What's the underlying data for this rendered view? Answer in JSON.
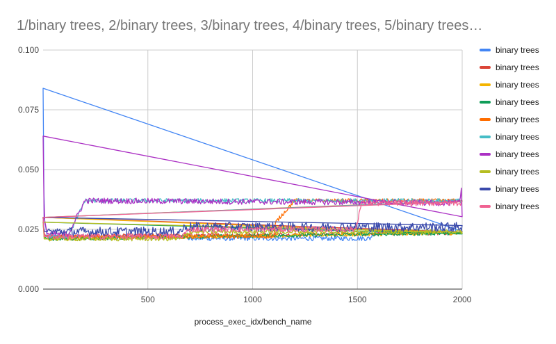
{
  "chart_data": {
    "type": "line",
    "title": "1/binary trees, 2/binary trees, 3/binary trees, 4/binary trees, 5/binary trees…",
    "xlabel": "process_exec_idx/bench_name",
    "ylabel": "",
    "xlim": [
      0,
      2000
    ],
    "ylim": [
      0,
      0.1
    ],
    "x_ticks": [
      500,
      1000,
      1500,
      2000
    ],
    "x_tick_labels": [
      "500",
      "1000",
      "1500",
      "2000"
    ],
    "y_ticks": [
      0,
      0.025,
      0.05,
      0.075,
      0.1
    ],
    "y_tick_labels": [
      "0.000",
      "0.025",
      "0.050",
      "0.075",
      "0.100"
    ],
    "grid": true,
    "legend_position": "right",
    "series": [
      {
        "name": "binary trees",
        "color": "#4285F4",
        "noise": 0.001,
        "x": [
          0,
          5,
          20,
          680,
          690,
          1560,
          1580,
          2000
        ],
        "y": [
          0.084,
          0.03,
          0.022,
          0.022,
          0.0212,
          0.0212,
          0.024,
          0.024
        ]
      },
      {
        "name": "binary trees",
        "color": "#DB4437",
        "noise": 0.0008,
        "x": [
          0,
          5,
          20,
          2000
        ],
        "y": [
          0.03,
          0.023,
          0.022,
          0.0235
        ]
      },
      {
        "name": "binary trees",
        "color": "#F4B400",
        "noise": 0.0008,
        "x": [
          0,
          5,
          20,
          2000
        ],
        "y": [
          0.03,
          0.022,
          0.021,
          0.0235
        ]
      },
      {
        "name": "binary trees",
        "color": "#0F9D58",
        "noise": 0.0008,
        "x": [
          0,
          5,
          20,
          2000
        ],
        "y": [
          0.028,
          0.022,
          0.021,
          0.0235
        ]
      },
      {
        "name": "binary trees",
        "color": "#FF6D00",
        "noise": 0.0008,
        "x": [
          0,
          5,
          20,
          1100,
          1110,
          1160,
          1200,
          2000
        ],
        "y": [
          0.03,
          0.022,
          0.022,
          0.022,
          0.028,
          0.033,
          0.037,
          0.037
        ]
      },
      {
        "name": "binary trees",
        "color": "#46BDC6",
        "noise": 0.0009,
        "x": [
          0,
          5,
          20,
          120,
          200,
          2000
        ],
        "y": [
          0.03,
          0.022,
          0.022,
          0.022,
          0.037,
          0.037
        ]
      },
      {
        "name": "binary trees",
        "color": "#AB30C4",
        "noise": 0.0012,
        "x": [
          0,
          5,
          20,
          120,
          200,
          1990,
          1995,
          2000
        ],
        "y": [
          0.064,
          0.03,
          0.023,
          0.023,
          0.037,
          0.036,
          0.045,
          0.03
        ]
      },
      {
        "name": "binary trees",
        "color": "#B5BD20",
        "noise": 0.0009,
        "x": [
          0,
          5,
          20,
          660,
          700,
          2000
        ],
        "y": [
          0.028,
          0.021,
          0.021,
          0.021,
          0.024,
          0.024
        ]
      },
      {
        "name": "binary trees",
        "color": "#3949AB",
        "noise": 0.002,
        "x": [
          0,
          5,
          20,
          650,
          680,
          2000
        ],
        "y": [
          0.03,
          0.024,
          0.024,
          0.024,
          0.026,
          0.026
        ]
      },
      {
        "name": "binary trees",
        "color": "#F06292",
        "noise": 0.0012,
        "x": [
          0,
          5,
          20,
          660,
          700,
          1490,
          1520,
          2000
        ],
        "y": [
          0.03,
          0.022,
          0.022,
          0.022,
          0.025,
          0.025,
          0.036,
          0.036
        ]
      }
    ]
  }
}
